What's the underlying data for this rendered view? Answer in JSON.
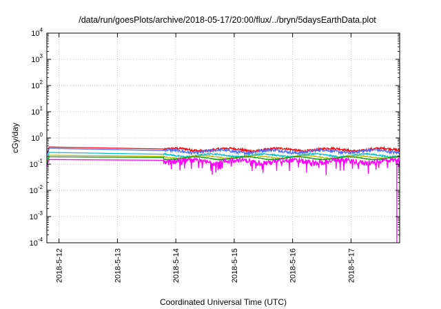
{
  "chart_data": {
    "type": "line",
    "title": "/data/run/goesPlots/archive/2018-05-17/20:00/flux/../bryn/5daysEarthData.plot",
    "xlabel": "Coordinated Universal Time (UTC)",
    "ylabel": "cGy/day",
    "y_scale": "log",
    "ylim": [
      0.0001,
      10000
    ],
    "xlim": [
      "2018-05-11T19:00",
      "2018-05-17T20:00"
    ],
    "grid": true,
    "legend": "none",
    "x_ticks": [
      "2018-5-12",
      "2018-5-13",
      "2018-5-14",
      "2018-5-15",
      "2018-5-16",
      "2018-5-17"
    ],
    "y_ticks": [
      {
        "value": 0.0001,
        "base": "10",
        "exp": "-4"
      },
      {
        "value": 0.001,
        "base": "10",
        "exp": "-3"
      },
      {
        "value": 0.01,
        "base": "10",
        "exp": "-2"
      },
      {
        "value": 0.1,
        "base": "10",
        "exp": "-1"
      },
      {
        "value": 1,
        "base": "10",
        "exp": "0"
      },
      {
        "value": 10,
        "base": "10",
        "exp": "1"
      },
      {
        "value": 100,
        "base": "10",
        "exp": "2"
      },
      {
        "value": 1000,
        "base": "10",
        "exp": "3"
      },
      {
        "value": 10000,
        "base": "10",
        "exp": "4"
      }
    ],
    "series": [
      {
        "color": "#ff0000",
        "start": 0.45,
        "gap_end": 0.38,
        "level": 0.36,
        "noise": 0.1
      },
      {
        "color": "#4a6cff",
        "start": 0.4,
        "gap_end": 0.33,
        "level": 0.31,
        "noise": 0.12
      },
      {
        "color": "#00c0d0",
        "start": 0.28,
        "gap_end": 0.24,
        "level": 0.22,
        "noise": 0.06
      },
      {
        "color": "#b8b800",
        "start": 0.22,
        "gap_end": 0.2,
        "level": 0.19,
        "noise": 0.04
      },
      {
        "color": "#00a000",
        "start": 0.19,
        "gap_end": 0.18,
        "level": 0.17,
        "noise": 0.03
      },
      {
        "color": "#ff00ff",
        "start": 0.15,
        "gap_end": 0.14,
        "level": 0.13,
        "noise": 0.22
      }
    ]
  }
}
